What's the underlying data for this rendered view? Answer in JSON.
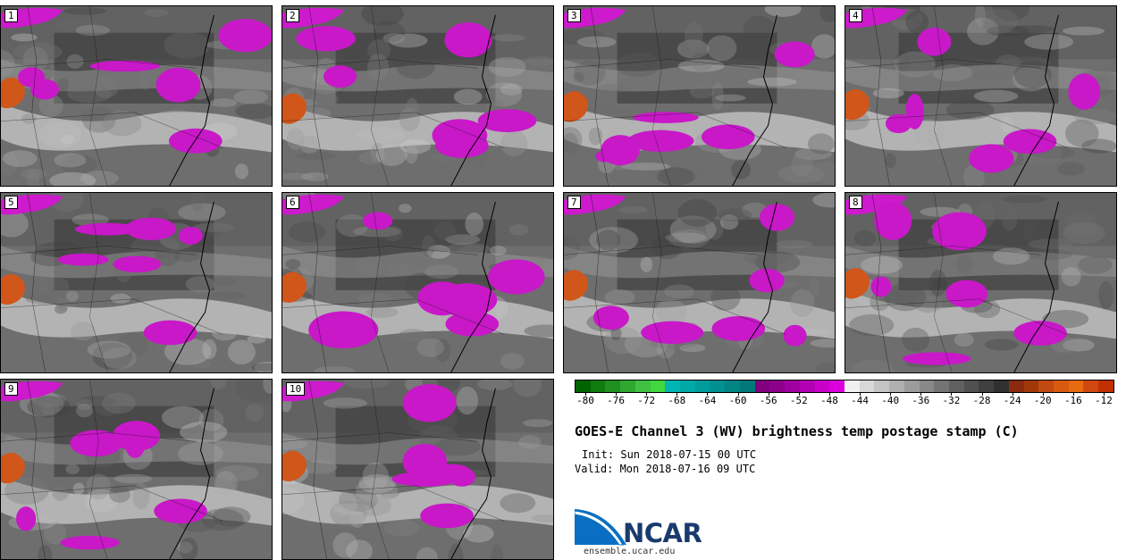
{
  "title": "GOES-E Channel 3 (WV) brightness temp postage stamp (C)",
  "init": "Init: Sun 2018-07-15 00 UTC",
  "valid": "Valid: Mon 2018-07-16 09 UTC",
  "logo": {
    "name": "NCAR",
    "url": "ensemble.ucar.edu"
  },
  "panels": [
    {
      "label": "1"
    },
    {
      "label": "2"
    },
    {
      "label": "3"
    },
    {
      "label": "4"
    },
    {
      "label": "5"
    },
    {
      "label": "6"
    },
    {
      "label": "7"
    },
    {
      "label": "8"
    },
    {
      "label": "9"
    },
    {
      "label": "10"
    }
  ],
  "colorbar": {
    "tick_labels": [
      "-80",
      "-76",
      "-72",
      "-68",
      "-64",
      "-60",
      "-56",
      "-52",
      "-48",
      "-44",
      "-40",
      "-36",
      "-32",
      "-28",
      "-24",
      "-20",
      "-16",
      "-12"
    ],
    "colors": [
      "#006400",
      "#107a10",
      "#209020",
      "#30a830",
      "#40c040",
      "#40d840",
      "#00b4b4",
      "#00a8a8",
      "#009c9c",
      "#009090",
      "#008484",
      "#007878",
      "#80007f",
      "#8c008c",
      "#a000a0",
      "#b400b4",
      "#c800c8",
      "#dc00dc",
      "#f0f0f0",
      "#d8d8d8",
      "#c4c4c4",
      "#b0b0b0",
      "#9c9c9c",
      "#888888",
      "#747474",
      "#606060",
      "#505050",
      "#404040",
      "#303030",
      "#8b2a0e",
      "#a0380a",
      "#c04a10",
      "#d85a10",
      "#e86a10",
      "#d04810",
      "#c03000"
    ]
  }
}
